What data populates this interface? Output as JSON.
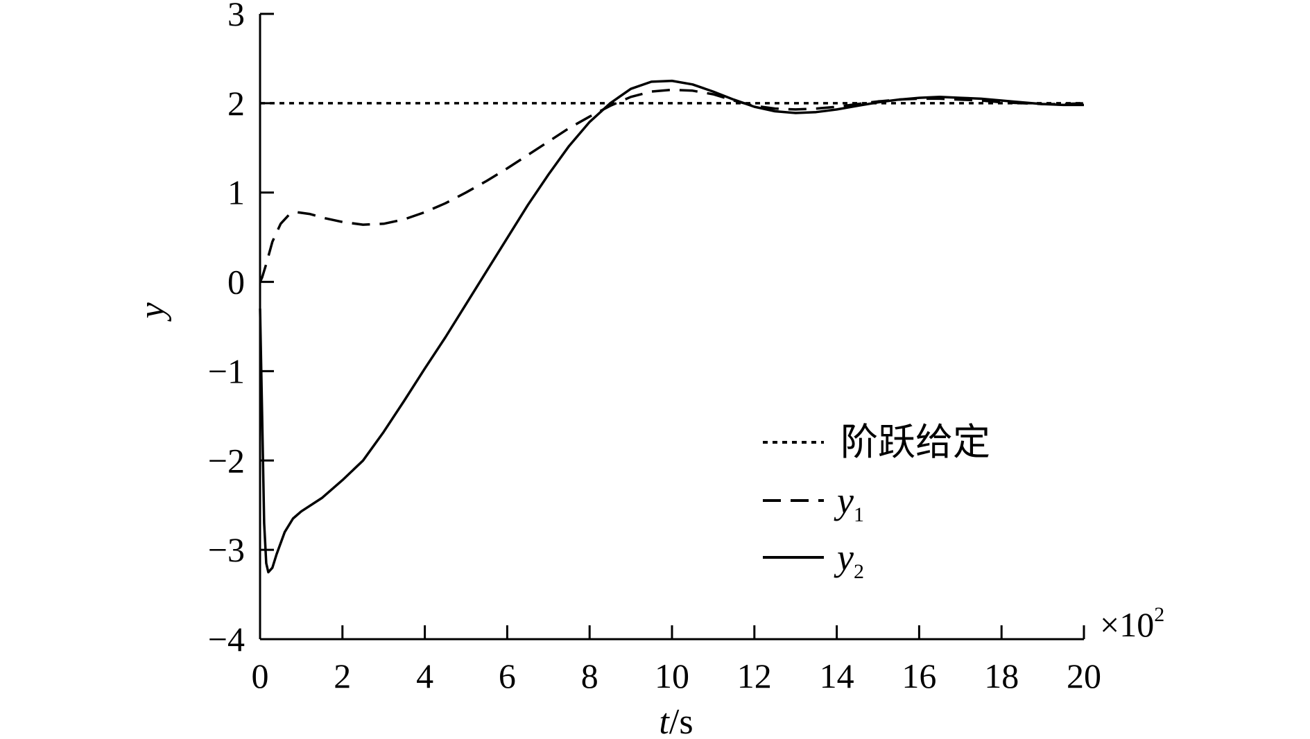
{
  "chart_data": {
    "type": "line",
    "xlabel_var": "t",
    "xlabel_unit": "/s",
    "ylabel": "y",
    "x_multiplier": "×10",
    "x_multiplier_exp": "2",
    "xlim": [
      0,
      20
    ],
    "ylim": [
      -4,
      3
    ],
    "x_ticks": [
      0,
      2,
      4,
      6,
      8,
      10,
      12,
      14,
      16,
      18,
      20
    ],
    "y_ticks": [
      3,
      2,
      1,
      0,
      -1,
      -2,
      -3,
      -4
    ],
    "grid": false,
    "legend_position": "bottom-right",
    "series": [
      {
        "name": "阶跃给定",
        "style": "dotted",
        "x": [
          0,
          20
        ],
        "y": [
          2,
          2
        ]
      },
      {
        "name": "y",
        "name_sub": "1",
        "style": "dashed",
        "x": [
          0,
          0.05,
          0.15,
          0.3,
          0.5,
          0.7,
          0.9,
          1.2,
          1.6,
          2.0,
          2.5,
          3.0,
          3.5,
          4.0,
          4.5,
          5.0,
          5.5,
          6.0,
          6.5,
          7.0,
          7.5,
          8.0,
          8.5,
          9.0,
          9.5,
          10.0,
          10.5,
          11.0,
          11.5,
          12.0,
          12.5,
          13.0,
          13.5,
          14.0,
          14.5,
          15.0,
          15.5,
          16.0,
          16.5,
          17.0,
          17.5,
          18.0,
          18.5,
          19.0,
          19.5,
          20.0
        ],
        "y": [
          0,
          0.05,
          0.2,
          0.45,
          0.65,
          0.75,
          0.78,
          0.76,
          0.71,
          0.67,
          0.64,
          0.65,
          0.7,
          0.78,
          0.88,
          1.0,
          1.13,
          1.27,
          1.42,
          1.57,
          1.72,
          1.85,
          1.97,
          2.07,
          2.13,
          2.15,
          2.14,
          2.1,
          2.03,
          1.97,
          1.94,
          1.93,
          1.94,
          1.96,
          1.99,
          2.02,
          2.04,
          2.05,
          2.05,
          2.04,
          2.03,
          2.01,
          2.0,
          1.99,
          1.99,
          2.0
        ]
      },
      {
        "name": "y",
        "name_sub": "2",
        "style": "solid",
        "x": [
          0,
          0.05,
          0.1,
          0.15,
          0.2,
          0.3,
          0.4,
          0.6,
          0.8,
          1.0,
          1.5,
          2.0,
          2.5,
          3.0,
          3.5,
          4.0,
          4.5,
          5.0,
          5.5,
          6.0,
          6.5,
          7.0,
          7.5,
          8.0,
          8.5,
          9.0,
          9.5,
          10.0,
          10.5,
          11.0,
          11.5,
          12.0,
          12.5,
          13.0,
          13.5,
          14.0,
          14.5,
          15.0,
          15.5,
          16.0,
          16.5,
          17.0,
          17.5,
          18.0,
          18.5,
          19.0,
          19.5,
          20.0
        ],
        "y": [
          -0.3,
          -1.5,
          -2.7,
          -3.15,
          -3.25,
          -3.2,
          -3.05,
          -2.8,
          -2.65,
          -2.57,
          -2.42,
          -2.22,
          -2.0,
          -1.68,
          -1.33,
          -0.97,
          -0.62,
          -0.25,
          0.12,
          0.49,
          0.86,
          1.2,
          1.52,
          1.79,
          2.0,
          2.16,
          2.24,
          2.25,
          2.21,
          2.13,
          2.04,
          1.96,
          1.91,
          1.89,
          1.9,
          1.93,
          1.97,
          2.01,
          2.04,
          2.06,
          2.07,
          2.06,
          2.05,
          2.03,
          2.01,
          1.99,
          1.98,
          1.98
        ]
      }
    ]
  }
}
